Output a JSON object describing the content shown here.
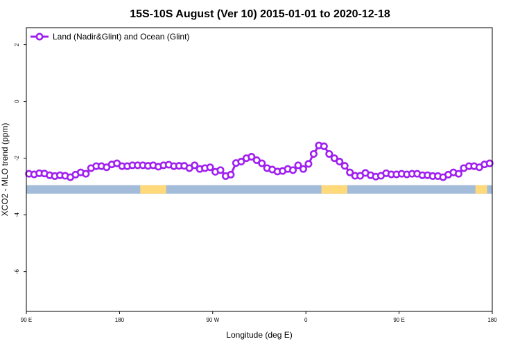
{
  "chart_data": {
    "type": "line",
    "title": "15S-10S August (Ver 10)   2015-01-01 to 2020-12-18",
    "xlabel": "Longitude (deg E)",
    "ylabel": "XCO2 - MLO trend (ppm)",
    "xlim": [
      90,
      450
    ],
    "ylim": [
      -7.4,
      2.6
    ],
    "x_ticks": [
      {
        "value": 90,
        "label": "90 E"
      },
      {
        "value": 162,
        "label": "180"
      },
      {
        "value": 234,
        "label": "90 W"
      },
      {
        "value": 306,
        "label": "0"
      },
      {
        "value": 378,
        "label": "90 E"
      },
      {
        "value": 450,
        "label": "180"
      }
    ],
    "y_ticks": [
      {
        "value": 2,
        "label": "2"
      },
      {
        "value": 0,
        "label": "0"
      },
      {
        "value": -2,
        "label": "-2"
      },
      {
        "value": -4,
        "label": "-4"
      },
      {
        "value": -6,
        "label": "-6"
      }
    ],
    "grid": false,
    "legend_position": "top-left",
    "series": [
      {
        "name": "Land (Nadir&Glint) and Ocean (Glint)",
        "color": "#a020f0",
        "x": [
          92,
          96,
          100,
          104,
          108,
          112,
          116,
          120,
          124,
          128,
          132,
          136,
          140,
          144,
          148,
          152,
          156,
          160,
          164,
          168,
          172,
          176,
          180,
          184,
          188,
          192,
          196,
          200,
          204,
          208,
          212,
          216,
          220,
          224,
          228,
          232,
          236,
          240,
          244,
          248,
          252,
          256,
          260,
          264,
          268,
          272,
          276,
          280,
          284,
          288,
          292,
          296,
          300,
          304,
          308,
          312,
          316,
          320,
          324,
          328,
          332,
          336,
          340,
          344,
          348,
          352,
          356,
          360,
          364,
          368,
          372,
          376,
          380,
          384,
          388,
          392,
          396,
          400,
          404,
          408,
          412,
          416,
          420,
          424,
          428,
          432,
          436,
          440,
          444,
          448
        ],
        "y": [
          -2.55,
          -2.57,
          -2.53,
          -2.54,
          -2.6,
          -2.63,
          -2.6,
          -2.62,
          -2.67,
          -2.58,
          -2.5,
          -2.55,
          -2.35,
          -2.28,
          -2.28,
          -2.32,
          -2.22,
          -2.18,
          -2.28,
          -2.28,
          -2.25,
          -2.25,
          -2.25,
          -2.27,
          -2.25,
          -2.3,
          -2.25,
          -2.23,
          -2.28,
          -2.27,
          -2.27,
          -2.35,
          -2.25,
          -2.38,
          -2.35,
          -2.32,
          -2.48,
          -2.42,
          -2.63,
          -2.58,
          -2.17,
          -2.12,
          -2.0,
          -1.95,
          -2.07,
          -2.18,
          -2.35,
          -2.4,
          -2.47,
          -2.45,
          -2.38,
          -2.42,
          -2.25,
          -2.38,
          -2.2,
          -1.85,
          -1.55,
          -1.58,
          -1.85,
          -2.0,
          -2.12,
          -2.27,
          -2.5,
          -2.62,
          -2.62,
          -2.52,
          -2.6,
          -2.65,
          -2.62,
          -2.53,
          -2.57,
          -2.57,
          -2.55,
          -2.57,
          -2.55,
          -2.55,
          -2.6,
          -2.6,
          -2.63,
          -2.63,
          -2.67,
          -2.58,
          -2.5,
          -2.55,
          -2.35,
          -2.28,
          -2.28,
          -2.32,
          -2.22,
          -2.18
        ]
      }
    ],
    "surface_strip": {
      "y_top": -2.95,
      "y_bottom": -3.25,
      "ocean_color": "#a3bcda",
      "land_color": "#ffd97a",
      "land_segments": [
        [
          178,
          198
        ],
        [
          318,
          338
        ],
        [
          437,
          446
        ]
      ]
    }
  }
}
